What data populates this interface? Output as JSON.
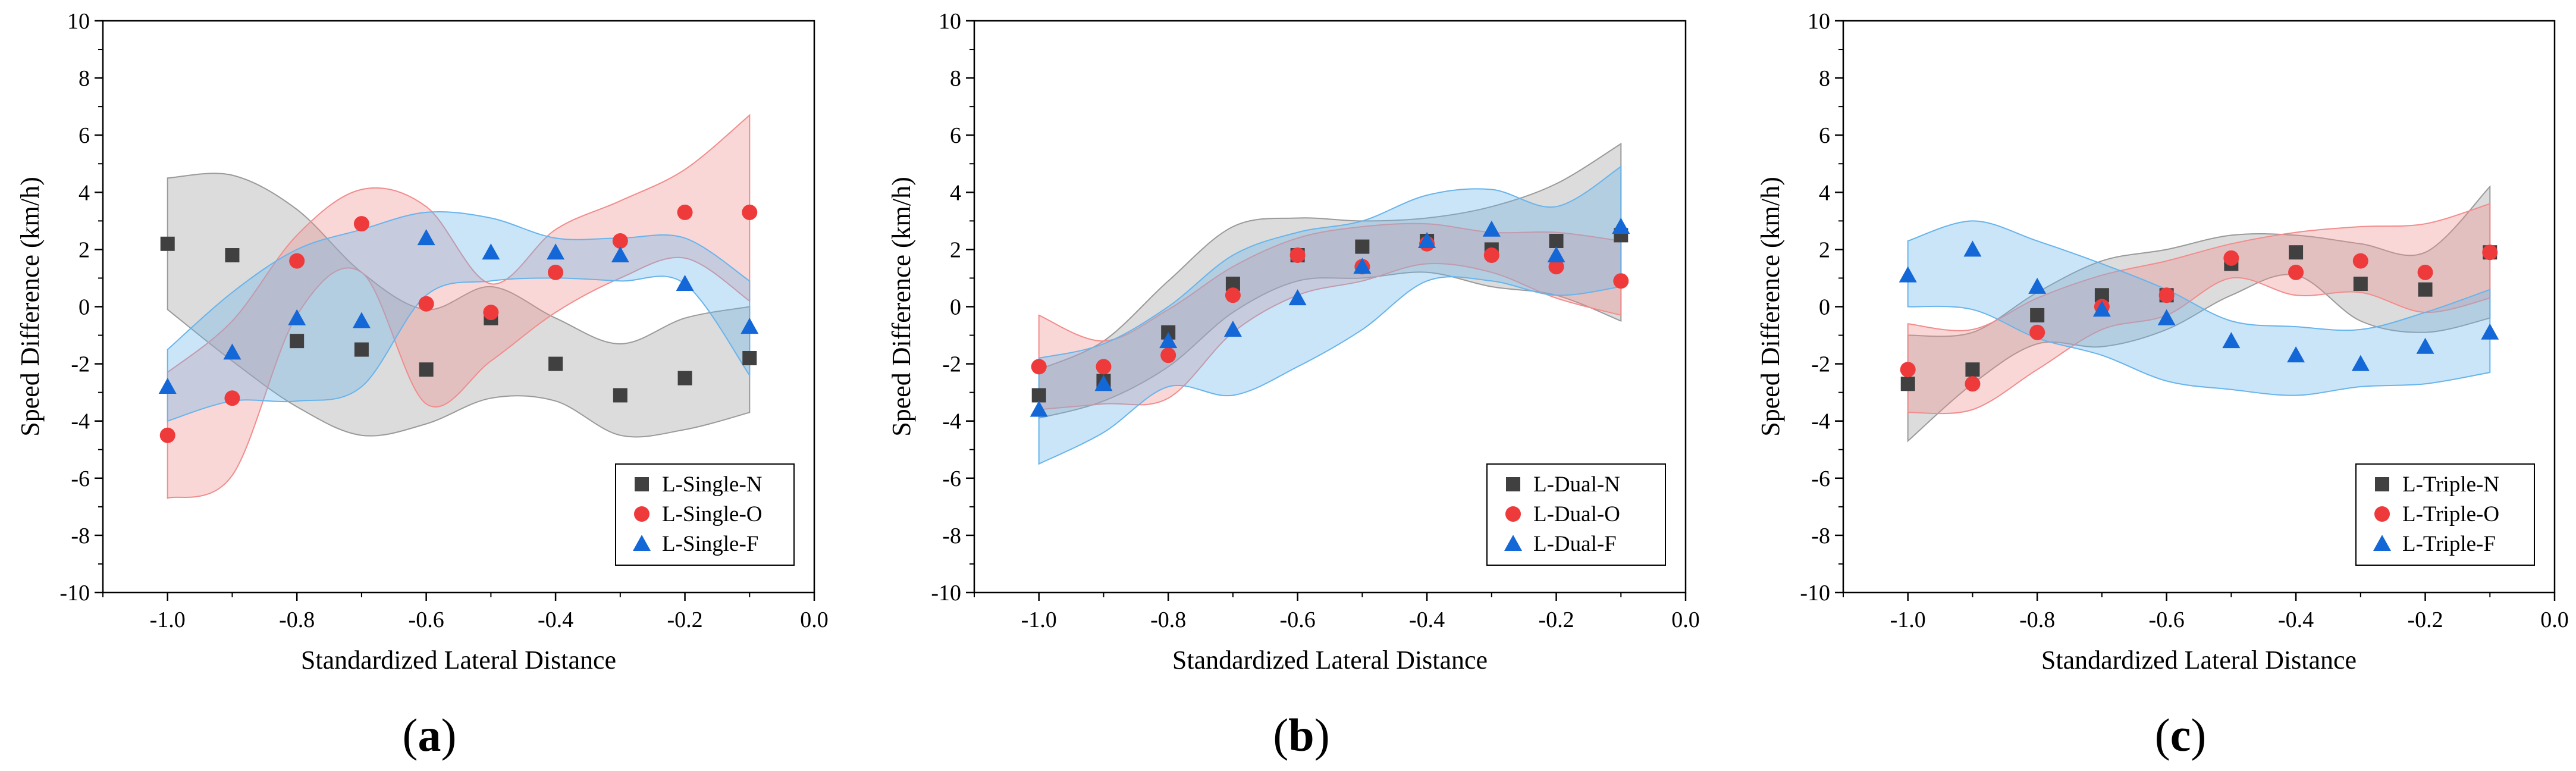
{
  "colors": {
    "N": "#404040",
    "O": "#ee3a3a",
    "F": "#1367d6"
  },
  "band_colors": {
    "N": "#9a9a9a",
    "O": "#f28c8c",
    "F": "#67b4ec"
  },
  "chart_data": [
    {
      "type": "scatter",
      "panel_label": "a",
      "xlabel": "Standardized Lateral Distance",
      "ylabel": "Speed Difference (km/h)",
      "xlim": [
        -1.1,
        0.0
      ],
      "ylim": [
        -10,
        10
      ],
      "x_ticks": [
        "-1.0",
        "-0.8",
        "-0.6",
        "-0.4",
        "-0.2",
        "0.0"
      ],
      "y_ticks": [
        "-10",
        "-8",
        "-6",
        "-4",
        "-2",
        "0",
        "2",
        "4",
        "6",
        "8",
        "10"
      ],
      "legend_position": "bottom-right",
      "x": [
        -1.0,
        -0.9,
        -0.8,
        -0.7,
        -0.6,
        -0.5,
        -0.4,
        -0.3,
        -0.2,
        -0.1
      ],
      "series": [
        {
          "key": "N",
          "name": "L-Single-N",
          "marker": "square",
          "values": [
            2.2,
            1.8,
            -1.2,
            -1.5,
            -2.2,
            -0.4,
            -2.0,
            -3.1,
            -2.5,
            -1.8
          ],
          "band_upper": [
            4.5,
            4.6,
            3.4,
            1.2,
            -0.1,
            0.7,
            -0.4,
            -1.3,
            -0.4,
            0.0
          ],
          "band_lower": [
            -0.1,
            -1.9,
            -3.5,
            -4.5,
            -4.1,
            -3.2,
            -3.3,
            -4.5,
            -4.3,
            -3.7
          ]
        },
        {
          "key": "O",
          "name": "L-Single-O",
          "marker": "circle",
          "values": [
            -4.5,
            -3.2,
            1.6,
            2.9,
            0.1,
            -0.2,
            1.2,
            2.3,
            3.3,
            3.3
          ],
          "band_upper": [
            -2.3,
            -0.5,
            2.5,
            4.1,
            3.5,
            0.8,
            2.7,
            3.7,
            4.8,
            6.7
          ],
          "band_lower": [
            -6.7,
            -5.9,
            -0.3,
            1.2,
            -3.4,
            -1.9,
            -0.2,
            1.0,
            1.7,
            0.2
          ]
        },
        {
          "key": "F",
          "name": "L-Single-F",
          "marker": "triangle",
          "values": [
            -2.8,
            -1.6,
            -0.4,
            -0.5,
            2.4,
            1.9,
            1.9,
            1.8,
            0.8,
            -0.7
          ],
          "band_upper": [
            -1.5,
            0.5,
            2.0,
            2.7,
            3.3,
            3.1,
            2.4,
            2.4,
            2.4,
            0.9
          ],
          "band_lower": [
            -4.0,
            -3.3,
            -3.3,
            -2.8,
            0.4,
            0.9,
            1.0,
            0.9,
            0.8,
            -2.4
          ]
        }
      ]
    },
    {
      "type": "scatter",
      "panel_label": "b",
      "xlabel": "Standardized Lateral Distance",
      "ylabel": "Speed Difference (km/h)",
      "xlim": [
        -1.1,
        0.0
      ],
      "ylim": [
        -10,
        10
      ],
      "x_ticks": [
        "-1.0",
        "-0.8",
        "-0.6",
        "-0.4",
        "-0.2",
        "0.0"
      ],
      "y_ticks": [
        "-10",
        "-8",
        "-6",
        "-4",
        "-2",
        "0",
        "2",
        "4",
        "6",
        "8",
        "10"
      ],
      "legend_position": "bottom-right",
      "x": [
        -1.0,
        -0.9,
        -0.8,
        -0.7,
        -0.6,
        -0.5,
        -0.4,
        -0.3,
        -0.2,
        -0.1
      ],
      "series": [
        {
          "key": "N",
          "name": "L-Dual-N",
          "marker": "square",
          "values": [
            -3.1,
            -2.6,
            -0.9,
            0.8,
            1.8,
            2.1,
            2.3,
            2.0,
            2.3,
            2.5
          ],
          "band_upper": [
            -2.2,
            -1.2,
            0.9,
            2.8,
            3.1,
            3.0,
            3.1,
            3.5,
            4.3,
            5.7
          ],
          "band_lower": [
            -3.9,
            -3.3,
            -2.1,
            -0.2,
            0.9,
            1.0,
            1.2,
            0.7,
            0.4,
            -0.5
          ]
        },
        {
          "key": "O",
          "name": "L-Dual-O",
          "marker": "circle",
          "values": [
            -2.1,
            -2.1,
            -1.7,
            0.4,
            1.8,
            1.4,
            2.2,
            1.8,
            1.4,
            0.9
          ],
          "band_upper": [
            -0.3,
            -1.2,
            -0.1,
            1.4,
            2.4,
            2.8,
            2.9,
            2.6,
            2.6,
            2.3
          ],
          "band_lower": [
            -3.6,
            -3.4,
            -3.2,
            -0.9,
            0.4,
            0.9,
            1.5,
            1.2,
            0.3,
            -0.3
          ]
        },
        {
          "key": "F",
          "name": "L-Dual-F",
          "marker": "triangle",
          "values": [
            -3.6,
            -2.7,
            -1.2,
            -0.8,
            0.3,
            1.4,
            2.3,
            2.7,
            1.8,
            2.8
          ],
          "band_upper": [
            -1.8,
            -1.3,
            0.0,
            1.8,
            2.6,
            3.0,
            3.9,
            4.1,
            3.5,
            4.9
          ],
          "band_lower": [
            -5.5,
            -4.4,
            -2.8,
            -3.1,
            -2.1,
            -0.8,
            0.9,
            0.9,
            0.4,
            0.7
          ]
        }
      ]
    },
    {
      "type": "scatter",
      "panel_label": "c",
      "xlabel": "Standardized Lateral Distance",
      "ylabel": "Speed Difference (km/h)",
      "xlim": [
        -1.1,
        0.0
      ],
      "ylim": [
        -10,
        10
      ],
      "x_ticks": [
        "-1.0",
        "-0.8",
        "-0.6",
        "-0.4",
        "-0.2",
        "0.0"
      ],
      "y_ticks": [
        "-10",
        "-8",
        "-6",
        "-4",
        "-2",
        "0",
        "2",
        "4",
        "6",
        "8",
        "10"
      ],
      "legend_position": "bottom-right",
      "x": [
        -1.0,
        -0.9,
        -0.8,
        -0.7,
        -0.6,
        -0.5,
        -0.4,
        -0.3,
        -0.2,
        -0.1
      ],
      "series": [
        {
          "key": "N",
          "name": "L-Triple-N",
          "marker": "square",
          "values": [
            -2.7,
            -2.2,
            -0.3,
            0.4,
            0.4,
            1.5,
            1.9,
            0.8,
            0.6,
            1.9
          ],
          "band_upper": [
            -1.0,
            -0.9,
            0.5,
            1.6,
            2.0,
            2.5,
            2.5,
            2.2,
            1.9,
            4.2
          ],
          "band_lower": [
            -4.7,
            -2.7,
            -1.3,
            -1.4,
            -0.8,
            0.4,
            1.1,
            -0.5,
            -0.9,
            -0.4
          ]
        },
        {
          "key": "O",
          "name": "L-Triple-O",
          "marker": "circle",
          "values": [
            -2.2,
            -2.7,
            -0.9,
            0.0,
            0.4,
            1.7,
            1.2,
            1.6,
            1.2,
            1.9
          ],
          "band_upper": [
            -0.6,
            -0.8,
            0.3,
            1.1,
            1.6,
            2.2,
            2.6,
            2.8,
            2.9,
            3.6
          ],
          "band_lower": [
            -3.7,
            -3.6,
            -2.2,
            -0.8,
            -0.3,
            1.0,
            0.4,
            0.5,
            -0.2,
            0.3
          ]
        },
        {
          "key": "F",
          "name": "L-Triple-F",
          "marker": "triangle",
          "values": [
            1.1,
            2.0,
            0.7,
            -0.1,
            -0.4,
            -1.2,
            -1.7,
            -2.0,
            -1.4,
            -0.9
          ],
          "band_upper": [
            2.3,
            3.0,
            2.3,
            1.5,
            0.6,
            -0.5,
            -0.7,
            -0.8,
            -0.2,
            0.6
          ],
          "band_lower": [
            0.0,
            -0.1,
            -1.1,
            -1.7,
            -2.6,
            -2.9,
            -3.1,
            -2.8,
            -2.7,
            -2.3
          ]
        }
      ]
    }
  ]
}
